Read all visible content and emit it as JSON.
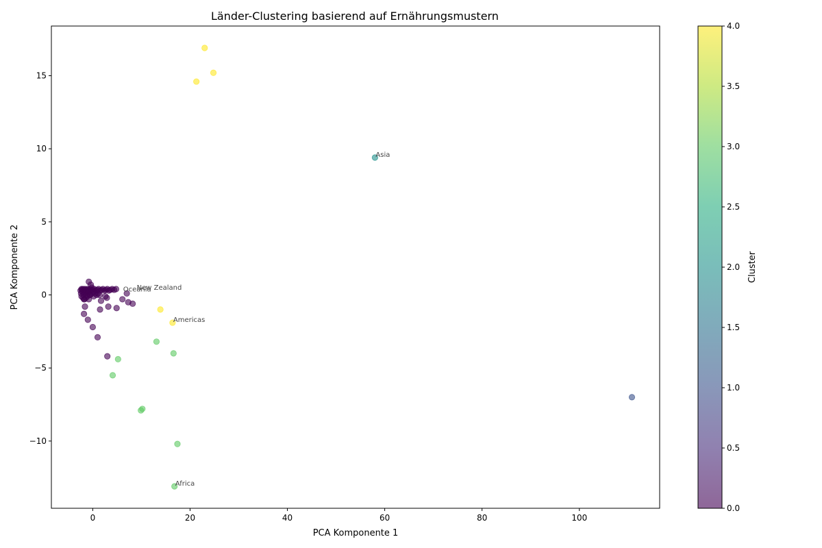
{
  "chart_data": {
    "type": "scatter",
    "title": "Länder-Clustering basierend auf Ernährungsmustern",
    "xlabel": "PCA Komponente 1",
    "ylabel": "PCA Komponente 2",
    "xlim": [
      -8.5,
      116.5
    ],
    "ylim": [
      -14.6,
      18.4
    ],
    "xticks": [
      0,
      20,
      40,
      60,
      80,
      100
    ],
    "yticks": [
      -10,
      -5,
      0,
      5,
      10,
      15
    ],
    "grid": false,
    "colorbar": {
      "label": "Cluster",
      "min": 0,
      "max": 4,
      "ticks": [
        "0.0",
        "0.5",
        "1.0",
        "1.5",
        "2.0",
        "2.5",
        "3.0",
        "3.5",
        "4.0"
      ],
      "colormap": "viridis"
    },
    "series": [
      {
        "cluster": 0,
        "color": "#440154",
        "x": [
          -2.5,
          -2.3,
          -2.2,
          -2.0,
          -1.8,
          -1.6,
          -1.5,
          -1.3,
          -1.1,
          -0.9,
          -0.7,
          -0.5,
          -0.3,
          0.0,
          0.3,
          0.6,
          0.9,
          1.2,
          1.5,
          1.8,
          2.1,
          2.4,
          2.7,
          3.0,
          3.3,
          3.6,
          4.0,
          4.4,
          4.8,
          -2.4,
          -2.1,
          -1.9,
          -1.7,
          -1.4,
          -1.2,
          -1.0,
          -0.8,
          -0.6,
          -2.3,
          -2.0,
          -1.7,
          -1.4,
          -1.1,
          -0.8,
          -0.5,
          -0.2,
          0.2,
          0.5,
          0.8,
          1.1,
          1.4,
          -0.8,
          -0.4,
          -0.2,
          0.2,
          -1.8,
          -1.6,
          -1.8,
          -1.0,
          0.0,
          1.0,
          3.0,
          1.7,
          1.5,
          3.2,
          4.9,
          2.6,
          2.9,
          6.1,
          7.3,
          8.2,
          7.0
        ],
        "y": [
          0.3,
          0.4,
          0.35,
          0.4,
          0.3,
          0.4,
          0.35,
          0.3,
          0.4,
          0.35,
          0.3,
          0.4,
          0.3,
          0.35,
          0.4,
          0.3,
          0.35,
          0.4,
          0.3,
          0.35,
          0.4,
          0.3,
          0.35,
          0.4,
          0.3,
          0.35,
          0.4,
          0.35,
          0.4,
          0.1,
          0.2,
          0.0,
          0.1,
          0.2,
          0.0,
          0.1,
          0.2,
          0.0,
          -0.1,
          -0.2,
          -0.3,
          -0.2,
          -0.1,
          -0.3,
          0.0,
          0.1,
          0.2,
          0.1,
          0.0,
          0.1,
          0.0,
          0.9,
          0.7,
          0.5,
          -0.1,
          -0.3,
          -0.8,
          -1.3,
          -1.7,
          -2.2,
          -2.9,
          -4.2,
          -0.4,
          -1.0,
          -0.8,
          -0.9,
          -0.1,
          -0.2,
          -0.3,
          -0.5,
          -0.6,
          0.1
        ]
      },
      {
        "cluster": 1,
        "color": "#3b528b",
        "x": [
          110.8
        ],
        "y": [
          -7.0
        ]
      },
      {
        "cluster": 2,
        "color": "#21918c",
        "x": [
          58.0
        ],
        "y": [
          9.4
        ]
      },
      {
        "cluster": 3,
        "color": "#5ec962",
        "x": [
          5.2,
          4.1,
          13.1,
          16.6,
          9.9,
          10.2,
          17.4,
          16.8
        ],
        "y": [
          -4.4,
          -5.5,
          -3.2,
          -4.0,
          -7.9,
          -7.8,
          -10.2,
          -13.1
        ]
      },
      {
        "cluster": 4,
        "color": "#fde725",
        "x": [
          23.0,
          24.8,
          21.3,
          13.9,
          16.4
        ],
        "y": [
          16.9,
          15.2,
          14.6,
          -1.0,
          -1.9
        ]
      }
    ],
    "annotations": [
      {
        "text": "Asia",
        "x": 58.0,
        "y": 9.4
      },
      {
        "text": "Americas",
        "x": 16.4,
        "y": -1.9
      },
      {
        "text": "Africa",
        "x": 16.8,
        "y": -13.1
      },
      {
        "text": "New Zealand",
        "x": 8.9,
        "y": 0.3
      },
      {
        "text": "Oceania",
        "x": 6.1,
        "y": 0.2
      }
    ]
  }
}
